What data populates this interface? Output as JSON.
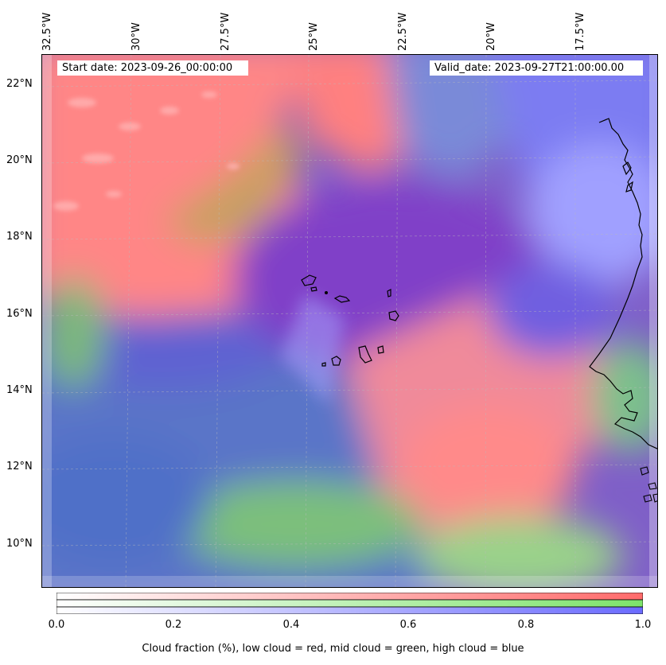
{
  "axes": {
    "lon_labels": [
      "32.5°W",
      "30°W",
      "27.5°W",
      "25°W",
      "22.5°W",
      "20°W",
      "17.5°W"
    ],
    "lat_labels": [
      "22°N",
      "20°N",
      "18°N",
      "16°N",
      "14°N",
      "12°N",
      "10°N"
    ]
  },
  "info": {
    "start_date": "Start date: 2023-09-26_00:00:00",
    "valid_date": "Valid_date: 2023-09-27T21:00:00.00"
  },
  "colorbar": {
    "ticks": [
      "0.0",
      "0.2",
      "0.4",
      "0.6",
      "0.8",
      "1.0"
    ],
    "label": "Cloud fraction (%), low cloud = red, mid cloud = green, high cloud = blue",
    "colors": {
      "low": "#ff6b6b",
      "mid": "#7de36b",
      "high": "#6b6bff"
    }
  },
  "map": {
    "base_colors": {
      "high": "#6a6ad8",
      "mixed": "#8a55c8",
      "low": "#ff8080",
      "mid": "#80c080"
    }
  }
}
